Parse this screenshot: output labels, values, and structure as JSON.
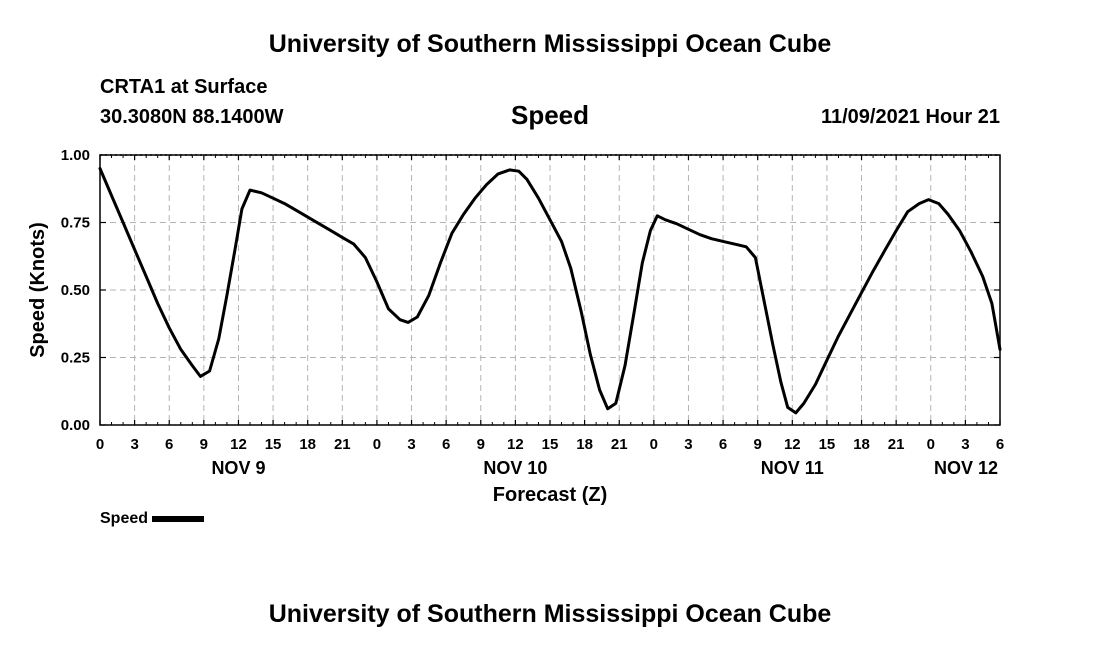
{
  "header": {
    "title": "University of Southern Mississippi Ocean Cube",
    "station": "CRTA1 at Surface",
    "coords": "30.3080N  88.1400W",
    "variable": "Speed",
    "datetime": "11/09/2021 Hour 21"
  },
  "footer": {
    "title": "University of Southern Mississippi Ocean Cube"
  },
  "legend": {
    "label": "Speed"
  },
  "chart_data": {
    "type": "line",
    "xlabel": "Forecast (Z)",
    "ylabel": "Speed (Knots)",
    "ylim": [
      0,
      1
    ],
    "xlim_hours": [
      0,
      78
    ],
    "grid": true,
    "y_ticks": [
      "0.00",
      "0.25",
      "0.50",
      "0.75",
      "1.00"
    ],
    "x_ticks": [
      {
        "h": 0,
        "label": "0"
      },
      {
        "h": 3,
        "label": "3"
      },
      {
        "h": 6,
        "label": "6"
      },
      {
        "h": 9,
        "label": "9"
      },
      {
        "h": 12,
        "label": "12"
      },
      {
        "h": 15,
        "label": "15"
      },
      {
        "h": 18,
        "label": "18"
      },
      {
        "h": 21,
        "label": "21"
      },
      {
        "h": 24,
        "label": "0"
      },
      {
        "h": 27,
        "label": "3"
      },
      {
        "h": 30,
        "label": "6"
      },
      {
        "h": 33,
        "label": "9"
      },
      {
        "h": 36,
        "label": "12"
      },
      {
        "h": 39,
        "label": "15"
      },
      {
        "h": 42,
        "label": "18"
      },
      {
        "h": 45,
        "label": "21"
      },
      {
        "h": 48,
        "label": "0"
      },
      {
        "h": 51,
        "label": "3"
      },
      {
        "h": 54,
        "label": "6"
      },
      {
        "h": 57,
        "label": "9"
      },
      {
        "h": 60,
        "label": "12"
      },
      {
        "h": 63,
        "label": "15"
      },
      {
        "h": 66,
        "label": "18"
      },
      {
        "h": 69,
        "label": "21"
      },
      {
        "h": 72,
        "label": "0"
      },
      {
        "h": 75,
        "label": "3"
      },
      {
        "h": 78,
        "label": "6"
      }
    ],
    "date_labels": [
      {
        "h": 12,
        "label": "NOV 9"
      },
      {
        "h": 36,
        "label": "NOV 10"
      },
      {
        "h": 60,
        "label": "NOV 11"
      },
      {
        "h": 78,
        "label": "NOV 12"
      }
    ],
    "series": [
      {
        "name": "Speed",
        "color": "#000000",
        "points": [
          [
            0,
            0.95
          ],
          [
            1,
            0.85
          ],
          [
            2,
            0.75
          ],
          [
            3,
            0.65
          ],
          [
            4,
            0.55
          ],
          [
            5,
            0.45
          ],
          [
            6,
            0.36
          ],
          [
            7,
            0.28
          ],
          [
            8,
            0.22
          ],
          [
            8.7,
            0.18
          ],
          [
            9.5,
            0.2
          ],
          [
            10.3,
            0.32
          ],
          [
            11,
            0.48
          ],
          [
            11.7,
            0.65
          ],
          [
            12.3,
            0.8
          ],
          [
            13,
            0.87
          ],
          [
            14,
            0.86
          ],
          [
            15,
            0.84
          ],
          [
            16,
            0.82
          ],
          [
            17,
            0.795
          ],
          [
            18,
            0.77
          ],
          [
            19,
            0.745
          ],
          [
            20,
            0.72
          ],
          [
            21,
            0.695
          ],
          [
            22,
            0.67
          ],
          [
            23,
            0.62
          ],
          [
            24,
            0.53
          ],
          [
            25,
            0.43
          ],
          [
            26,
            0.39
          ],
          [
            26.7,
            0.38
          ],
          [
            27.5,
            0.4
          ],
          [
            28.5,
            0.48
          ],
          [
            29.5,
            0.6
          ],
          [
            30.5,
            0.71
          ],
          [
            31.5,
            0.78
          ],
          [
            32.5,
            0.84
          ],
          [
            33.5,
            0.89
          ],
          [
            34.5,
            0.93
          ],
          [
            35.5,
            0.945
          ],
          [
            36.3,
            0.94
          ],
          [
            37,
            0.91
          ],
          [
            38,
            0.84
          ],
          [
            39,
            0.76
          ],
          [
            40,
            0.68
          ],
          [
            40.8,
            0.58
          ],
          [
            41.7,
            0.42
          ],
          [
            42.5,
            0.26
          ],
          [
            43.3,
            0.13
          ],
          [
            44,
            0.06
          ],
          [
            44.7,
            0.08
          ],
          [
            45.5,
            0.22
          ],
          [
            46.3,
            0.42
          ],
          [
            47,
            0.6
          ],
          [
            47.7,
            0.72
          ],
          [
            48.3,
            0.775
          ],
          [
            49,
            0.76
          ],
          [
            50,
            0.745
          ],
          [
            51,
            0.725
          ],
          [
            52,
            0.705
          ],
          [
            53,
            0.69
          ],
          [
            54,
            0.68
          ],
          [
            55,
            0.67
          ],
          [
            56,
            0.66
          ],
          [
            56.8,
            0.62
          ],
          [
            57.5,
            0.47
          ],
          [
            58.3,
            0.3
          ],
          [
            59,
            0.16
          ],
          [
            59.6,
            0.065
          ],
          [
            60.3,
            0.045
          ],
          [
            61,
            0.08
          ],
          [
            62,
            0.15
          ],
          [
            63,
            0.24
          ],
          [
            64,
            0.33
          ],
          [
            65,
            0.41
          ],
          [
            66,
            0.49
          ],
          [
            67,
            0.57
          ],
          [
            68,
            0.645
          ],
          [
            69,
            0.72
          ],
          [
            70,
            0.79
          ],
          [
            71,
            0.82
          ],
          [
            71.8,
            0.835
          ],
          [
            72.7,
            0.82
          ],
          [
            73.5,
            0.78
          ],
          [
            74.5,
            0.72
          ],
          [
            75.5,
            0.64
          ],
          [
            76.5,
            0.55
          ],
          [
            77.3,
            0.45
          ],
          [
            78,
            0.28
          ]
        ]
      }
    ]
  }
}
